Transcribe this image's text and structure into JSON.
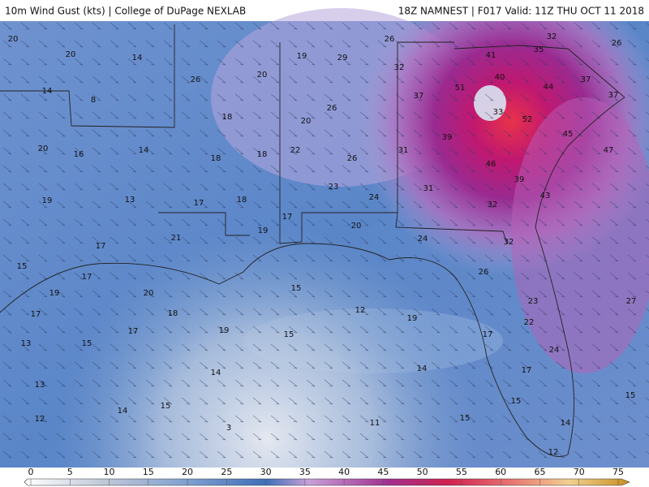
{
  "header": {
    "left": "10m Wind Gust (kts) | College of DuPage NEXLAB",
    "right": "18Z NAMNEST | F017 Valid: 11Z THU OCT 11 2018"
  },
  "gust_labels": [
    20,
    20,
    14,
    14,
    8,
    26,
    19,
    20,
    29,
    26,
    32,
    35,
    26,
    41,
    32,
    37,
    51,
    40,
    44,
    37,
    37,
    33,
    52,
    18,
    26,
    20,
    20,
    16,
    14,
    18,
    18,
    22,
    26,
    31,
    39,
    45,
    47,
    46,
    39,
    23,
    24,
    31,
    43,
    19,
    13,
    17,
    18,
    32,
    17,
    20,
    19,
    21,
    24,
    32,
    17,
    15,
    17,
    26,
    19,
    20,
    15,
    23,
    27,
    17,
    18,
    12,
    19,
    22,
    17,
    19,
    15,
    17,
    13,
    15,
    24,
    17,
    14,
    14,
    13,
    15,
    15,
    15,
    14,
    12,
    11,
    15,
    3,
    14,
    12
  ],
  "colorbar": {
    "ticks": [
      0,
      5,
      10,
      15,
      20,
      25,
      30,
      35,
      40,
      45,
      50,
      55,
      60,
      65,
      70,
      75
    ]
  }
}
